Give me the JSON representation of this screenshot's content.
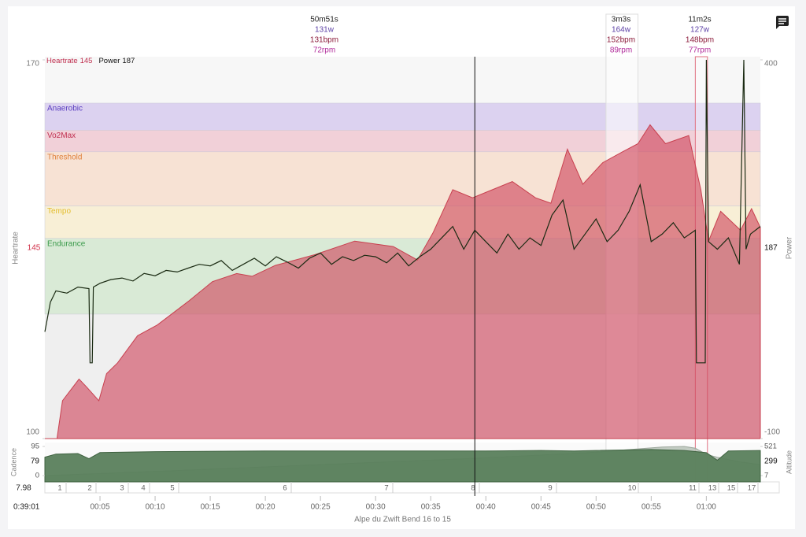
{
  "header": {
    "annotations": [
      {
        "duration": "50m51s",
        "power": "131w",
        "heartrate": "131bpm",
        "cadence": "72rpm"
      },
      {
        "duration": "3m3s",
        "power": "164w",
        "heartrate": "152bpm",
        "cadence": "89rpm"
      },
      {
        "duration": "11m2s",
        "power": "127w",
        "heartrate": "148bpm",
        "cadence": "77rpm"
      }
    ]
  },
  "legend": {
    "heartrate": "Heartrate",
    "power": "Power"
  },
  "cursor": {
    "heartrate": 145,
    "power": 187,
    "cadence": 79,
    "altitude": 299,
    "distance": 7.98,
    "time": "0:39:01",
    "minute": 39.0
  },
  "main_chart": {
    "type": "area-line",
    "x_label": "Alpe du Zwift Bend 16 to 15",
    "y_label": "Heartrate",
    "y2_label": "Power",
    "xlim": [
      0,
      64.9
    ],
    "xticks": [
      {
        "value": 5,
        "label": "00:05"
      },
      {
        "value": 10,
        "label": "00:10"
      },
      {
        "value": 15,
        "label": "00:15"
      },
      {
        "value": 20,
        "label": "00:20"
      },
      {
        "value": 25,
        "label": "00:25"
      },
      {
        "value": 30,
        "label": "00:30"
      },
      {
        "value": 35,
        "label": "00:35"
      },
      {
        "value": 40,
        "label": "00:40"
      },
      {
        "value": 45,
        "label": "00:45"
      },
      {
        "value": 50,
        "label": "00:50"
      },
      {
        "value": 55,
        "label": "00:55"
      },
      {
        "value": 60,
        "label": "01:00"
      }
    ],
    "ylim": [
      100,
      170
    ],
    "yticks": [
      100,
      170
    ],
    "y2lim": [
      -100,
      400
    ],
    "y2ticks": [
      -100,
      400
    ],
    "zones": [
      {
        "name": "Anaerobic",
        "range": [
          157,
          162
        ],
        "color": "#dcd2f0",
        "text_color": "#5b3fc0"
      },
      {
        "name": "Vo2Max",
        "range": [
          153,
          157
        ],
        "color": "#f1d0d8",
        "text_color": "#c03050"
      },
      {
        "name": "Threshold",
        "range": [
          143,
          153
        ],
        "color": "#f7e2d4",
        "text_color": "#e0803a"
      },
      {
        "name": "Tempo",
        "range": [
          137,
          143
        ],
        "color": "#f8efd6",
        "text_color": "#e3bd2c"
      },
      {
        "name": "Endurance",
        "range": [
          123,
          137
        ],
        "color": "#d9ead6",
        "text_color": "#3a9a4a"
      }
    ],
    "heartrate": {
      "color": "#c8404f",
      "x": [
        0,
        1.1,
        1.6,
        3.1,
        3.8,
        4.9,
        5.6,
        6.6,
        8.4,
        10.2,
        13.1,
        15.2,
        17.4,
        18.8,
        20.9,
        24.5,
        28.1,
        31.6,
        33.8,
        35.2,
        37,
        38.8,
        40.6,
        42.4,
        44.5,
        45.9,
        47.4,
        48.8,
        50.6,
        52.4,
        53.8,
        54.9,
        56.3,
        58.4,
        59.5,
        60.2,
        61.3,
        63.1,
        64.1,
        64.9
      ],
      "values": [
        100,
        100,
        107,
        111,
        109.5,
        107,
        112,
        114,
        119,
        121,
        125.5,
        129,
        130.5,
        130,
        132,
        134,
        136.5,
        135.5,
        133,
        138,
        146,
        144.5,
        146,
        147.5,
        144.5,
        143.5,
        153.5,
        147,
        151,
        153,
        154.5,
        158,
        154.5,
        156,
        146,
        136.5,
        142,
        138.5,
        142.5,
        139
      ]
    },
    "power": {
      "color": "#1a2a12",
      "axis": "y2",
      "x": [
        0,
        0.5,
        1,
        2,
        3,
        4,
        4.1,
        4.3,
        4.4,
        5,
        6,
        7,
        8,
        9,
        10,
        11,
        12,
        13,
        14,
        15,
        16,
        17,
        18,
        19,
        20,
        21,
        22,
        23,
        24,
        25,
        26,
        27,
        28,
        29,
        30,
        31,
        32,
        33,
        34,
        35,
        36,
        37,
        38,
        39,
        40,
        41,
        42,
        43,
        44,
        45,
        46,
        47,
        48,
        49,
        50,
        51,
        52,
        53,
        54,
        55,
        56,
        57,
        58,
        59,
        59.1,
        59.9,
        60,
        60.2,
        61,
        62,
        63,
        63.4,
        63.6,
        64,
        64.9
      ],
      "values": [
        41,
        80,
        95,
        92,
        100,
        98,
        0,
        0,
        100,
        105,
        110,
        112,
        108,
        118,
        115,
        122,
        120,
        125,
        130,
        128,
        135,
        122,
        130,
        138,
        128,
        140,
        133,
        125,
        138,
        145,
        130,
        140,
        135,
        142,
        140,
        132,
        145,
        128,
        140,
        150,
        165,
        180,
        150,
        175,
        160,
        145,
        170,
        150,
        165,
        155,
        195,
        215,
        150,
        170,
        190,
        160,
        175,
        200,
        235,
        160,
        170,
        185,
        165,
        175,
        0,
        0,
        400,
        160,
        150,
        165,
        130,
        400,
        150,
        170,
        180
      ]
    }
  },
  "sub_chart": {
    "cadence_label": "Cadence",
    "altitude_label": "Altitude",
    "cadence": {
      "color": "#5a7f5c",
      "ylim": [
        0,
        95
      ],
      "yticks": [
        0,
        95
      ],
      "x": [
        0,
        1,
        3,
        4,
        5,
        10,
        20,
        30,
        40,
        45,
        48,
        50,
        55,
        58,
        60,
        61,
        62,
        64.9
      ],
      "values": [
        60,
        70,
        72,
        55,
        75,
        78,
        80,
        80,
        80,
        82,
        80,
        82,
        85,
        82,
        75,
        50,
        80,
        82
      ]
    },
    "altitude": {
      "color": "#b9c3b9",
      "ylim": [
        7,
        521
      ],
      "yticks": [
        7,
        521
      ],
      "x": [
        0,
        10,
        20,
        30,
        40,
        50,
        56,
        58,
        59,
        60,
        61,
        63,
        64.9
      ],
      "values": [
        7,
        80,
        160,
        240,
        320,
        420,
        510,
        521,
        490,
        380,
        330,
        250,
        200
      ]
    }
  },
  "laps": [
    1,
    2,
    3,
    4,
    5,
    6,
    7,
    8,
    9,
    10,
    11,
    13,
    15,
    17
  ],
  "highlights": [
    [
      50.9,
      53.8
    ],
    [
      59.0,
      60.1
    ]
  ]
}
